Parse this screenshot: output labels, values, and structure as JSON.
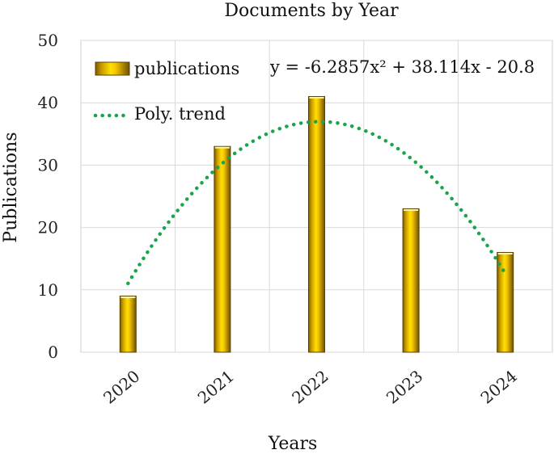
{
  "chart_data": {
    "type": "bar",
    "title": "Documents by Year",
    "xlabel": "Years",
    "ylabel": "Publications",
    "categories": [
      "2020",
      "2021",
      "2022",
      "2023",
      "2024"
    ],
    "series": [
      {
        "name": "publications",
        "values": [
          9,
          33,
          41,
          23,
          16
        ],
        "color": "#e0b000"
      }
    ],
    "trendline": {
      "name": "Poly. trend",
      "type": "polynomial",
      "order": 2,
      "equation": "y = -6.2857x² + 38.114x - 20.8",
      "coefficients": {
        "a": -6.2857,
        "b": 38.114,
        "c": -20.8
      },
      "color": "#1aa54a",
      "style": "dotted"
    },
    "yticks": [
      "0",
      "10",
      "20",
      "30",
      "40",
      "50"
    ],
    "ylim": [
      0,
      50
    ],
    "grid": true,
    "legend": "top-left"
  }
}
